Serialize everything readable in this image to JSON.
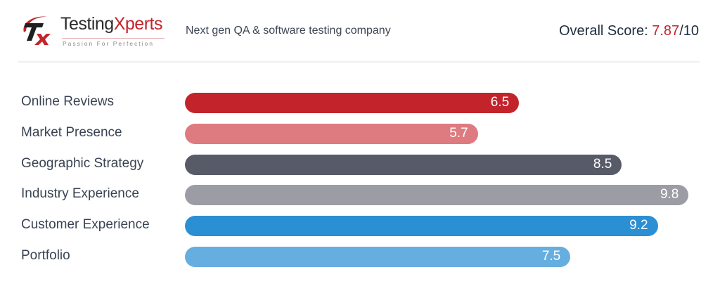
{
  "header": {
    "logo": {
      "name_prefix": "Testing",
      "name_suffix": "Xperts",
      "tagline": "Passion For Perfection",
      "mark_letters": "TX"
    },
    "tagline": "Next gen QA & software testing company",
    "overall": {
      "label": "Overall Score: ",
      "score": "7.87",
      "suffix": "/10"
    }
  },
  "chart_data": {
    "type": "bar",
    "orientation": "horizontal",
    "title": "",
    "xlabel": "",
    "ylabel": "",
    "xlim": [
      0,
      10
    ],
    "grid": false,
    "categories": [
      "Online Reviews",
      "Market Presence",
      "Geographic Strategy",
      "Industry Experience",
      "Customer Experience",
      "Portfolio"
    ],
    "values": [
      6.5,
      5.7,
      8.5,
      9.8,
      9.2,
      7.5
    ],
    "value_labels": [
      "6.5",
      "5.7",
      "8.5",
      "9.8",
      "9.2",
      "7.5"
    ],
    "colors": [
      "#c3242b",
      "#dd7b80",
      "#575a67",
      "#9c9ca4",
      "#2b8fd3",
      "#67aee0"
    ]
  }
}
